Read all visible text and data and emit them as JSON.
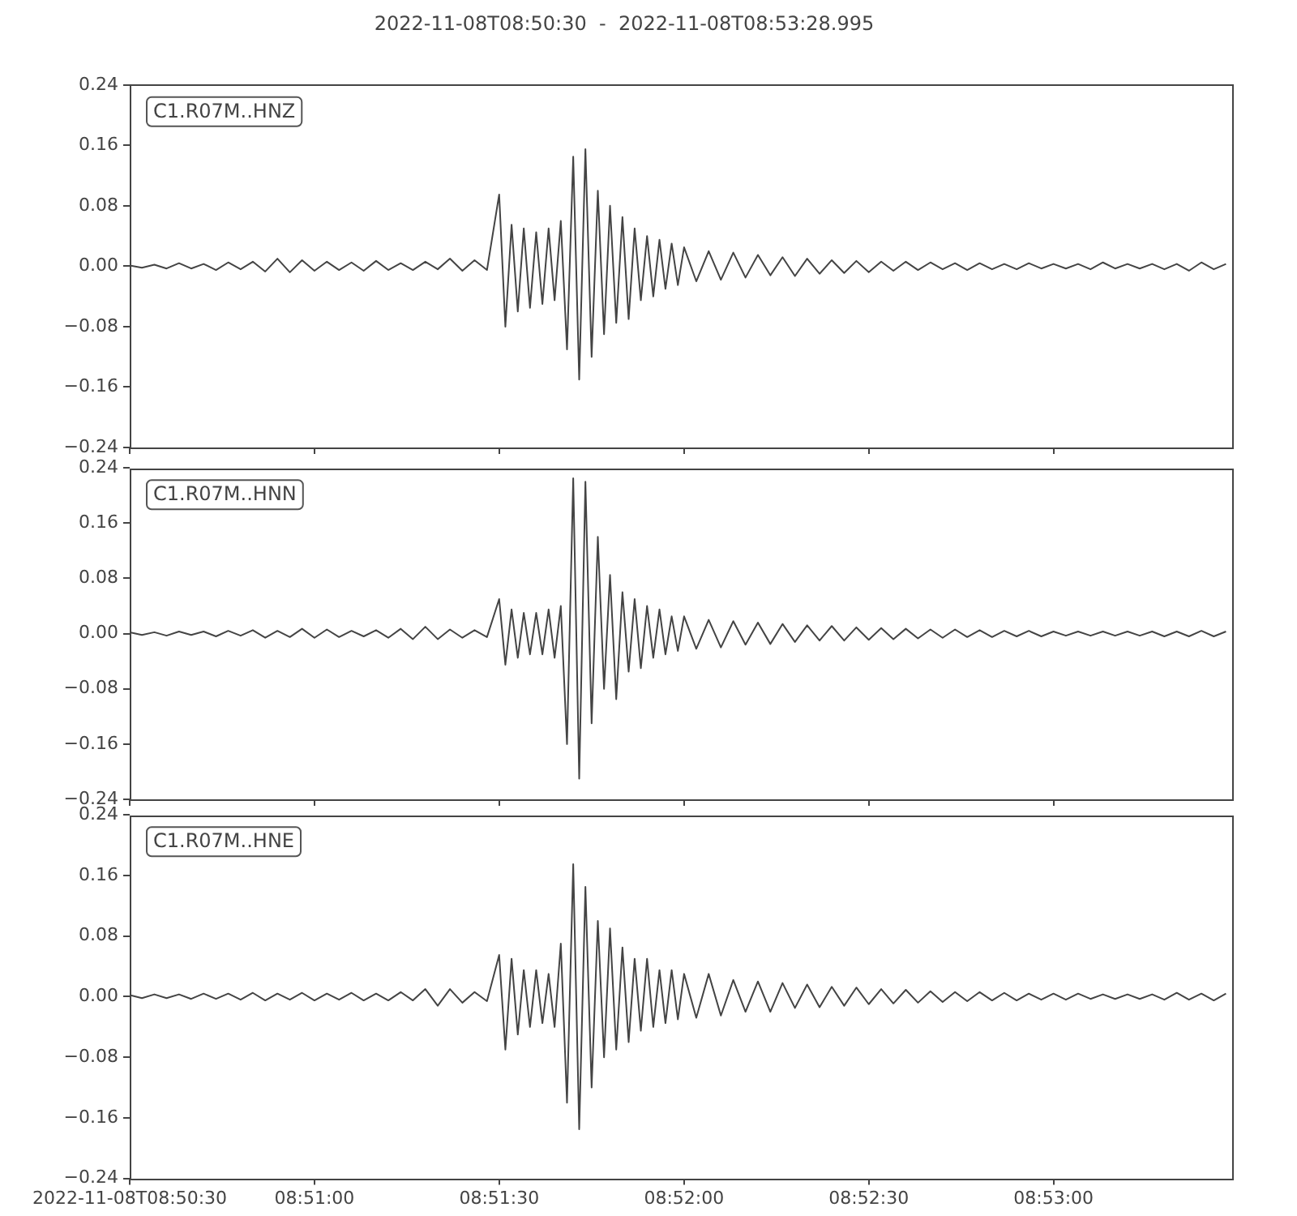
{
  "chart_data": [
    {
      "type": "line",
      "title": "2022-11-08T08:50:30  -  2022-11-08T08:53:28.995",
      "annotations": [
        "C1.R07M..HNZ"
      ],
      "color": "#444444",
      "tick_labels": "y",
      "xlim": [
        8.841667,
        8.891388
      ],
      "xticks": [
        {
          "value": 8.841667,
          "label": null
        },
        {
          "value": 8.85,
          "label": null
        },
        {
          "value": 8.858333,
          "label": null
        },
        {
          "value": 8.866667,
          "label": null
        },
        {
          "value": 8.875,
          "label": null
        },
        {
          "value": 8.883333,
          "label": null
        }
      ],
      "ylim": [
        -0.24,
        0.24
      ],
      "yticks": [
        {
          "value": -0.24,
          "label": "−0.24"
        },
        {
          "value": -0.16,
          "label": "−0.16"
        },
        {
          "value": -0.08,
          "label": "−0.08"
        },
        {
          "value": 0,
          "label": "0.00"
        },
        {
          "value": 0.08,
          "label": "0.08"
        },
        {
          "value": 0.16,
          "label": "0.16"
        },
        {
          "value": 0.24,
          "label": "0.24"
        }
      ],
      "x": [
        8.84167,
        8.84222,
        8.84278,
        8.84333,
        8.84389,
        8.84444,
        8.845,
        8.84556,
        8.84611,
        8.84667,
        8.84722,
        8.84778,
        8.84833,
        8.84889,
        8.84944,
        8.85,
        8.85056,
        8.85111,
        8.85167,
        8.85222,
        8.85278,
        8.85333,
        8.85389,
        8.85444,
        8.855,
        8.85556,
        8.85611,
        8.85667,
        8.85722,
        8.85778,
        8.85833,
        8.85861,
        8.85889,
        8.85917,
        8.85944,
        8.85972,
        8.86,
        8.86028,
        8.86056,
        8.86083,
        8.86111,
        8.86139,
        8.86167,
        8.86194,
        8.86222,
        8.8625,
        8.86278,
        8.86306,
        8.86333,
        8.86361,
        8.86389,
        8.86417,
        8.86444,
        8.86472,
        8.865,
        8.86528,
        8.86556,
        8.86583,
        8.86611,
        8.86639,
        8.86667,
        8.86722,
        8.86778,
        8.86833,
        8.86889,
        8.86944,
        8.87,
        8.87056,
        8.87111,
        8.87167,
        8.87222,
        8.87278,
        8.87333,
        8.87389,
        8.87444,
        8.875,
        8.87556,
        8.87611,
        8.87667,
        8.87722,
        8.87778,
        8.87833,
        8.87889,
        8.87944,
        8.88,
        8.88056,
        8.88111,
        8.88167,
        8.88222,
        8.88278,
        8.88333,
        8.88389,
        8.88444,
        8.885,
        8.88556,
        8.88611,
        8.88667,
        8.88722,
        8.88778,
        8.88833,
        8.88889,
        8.88944,
        8.89,
        8.89056,
        8.89111
      ],
      "values": [
        0.001,
        -0.002,
        0.002,
        -0.003,
        0.004,
        -0.003,
        0.003,
        -0.005,
        0.005,
        -0.004,
        0.006,
        -0.007,
        0.01,
        -0.008,
        0.008,
        -0.006,
        0.006,
        -0.005,
        0.005,
        -0.006,
        0.007,
        -0.005,
        0.004,
        -0.005,
        0.006,
        -0.004,
        0.01,
        -0.006,
        0.008,
        -0.005,
        0.095,
        -0.08,
        0.055,
        -0.06,
        0.05,
        -0.055,
        0.045,
        -0.05,
        0.05,
        -0.045,
        0.06,
        -0.11,
        0.145,
        -0.15,
        0.155,
        -0.12,
        0.1,
        -0.09,
        0.08,
        -0.075,
        0.065,
        -0.07,
        0.05,
        -0.045,
        0.04,
        -0.04,
        0.035,
        -0.03,
        0.03,
        -0.025,
        0.025,
        -0.02,
        0.02,
        -0.018,
        0.018,
        -0.015,
        0.015,
        -0.012,
        0.012,
        -0.013,
        0.01,
        -0.01,
        0.008,
        -0.009,
        0.007,
        -0.008,
        0.006,
        -0.006,
        0.006,
        -0.005,
        0.005,
        -0.004,
        0.004,
        -0.005,
        0.004,
        -0.004,
        0.003,
        -0.004,
        0.004,
        -0.003,
        0.003,
        -0.003,
        0.003,
        -0.004,
        0.005,
        -0.003,
        0.003,
        -0.003,
        0.003,
        -0.004,
        0.003,
        -0.006,
        0.005,
        -0.004,
        0.003
      ]
    },
    {
      "type": "line",
      "annotations": [
        "C1.R07M..HNN"
      ],
      "color": "#444444",
      "tick_labels": "y",
      "xlim": [
        8.841667,
        8.891388
      ],
      "xticks": [
        {
          "value": 8.841667,
          "label": null
        },
        {
          "value": 8.85,
          "label": null
        },
        {
          "value": 8.858333,
          "label": null
        },
        {
          "value": 8.866667,
          "label": null
        },
        {
          "value": 8.875,
          "label": null
        },
        {
          "value": 8.883333,
          "label": null
        }
      ],
      "ylim": [
        -0.24,
        0.24
      ],
      "yticks": [
        {
          "value": -0.24,
          "label": "−0.24"
        },
        {
          "value": -0.16,
          "label": "−0.16"
        },
        {
          "value": -0.08,
          "label": "−0.08"
        },
        {
          "value": 0,
          "label": "0.00"
        },
        {
          "value": 0.08,
          "label": "0.08"
        },
        {
          "value": 0.16,
          "label": "0.16"
        },
        {
          "value": 0.24,
          "label": "0.24"
        }
      ],
      "x": [
        8.84167,
        8.84222,
        8.84278,
        8.84333,
        8.84389,
        8.84444,
        8.845,
        8.84556,
        8.84611,
        8.84667,
        8.84722,
        8.84778,
        8.84833,
        8.84889,
        8.84944,
        8.85,
        8.85056,
        8.85111,
        8.85167,
        8.85222,
        8.85278,
        8.85333,
        8.85389,
        8.85444,
        8.855,
        8.85556,
        8.85611,
        8.85667,
        8.85722,
        8.85778,
        8.85833,
        8.85861,
        8.85889,
        8.85917,
        8.85944,
        8.85972,
        8.86,
        8.86028,
        8.86056,
        8.86083,
        8.86111,
        8.86139,
        8.86167,
        8.86194,
        8.86222,
        8.8625,
        8.86278,
        8.86306,
        8.86333,
        8.86361,
        8.86389,
        8.86417,
        8.86444,
        8.86472,
        8.865,
        8.86528,
        8.86556,
        8.86583,
        8.86611,
        8.86639,
        8.86667,
        8.86722,
        8.86778,
        8.86833,
        8.86889,
        8.86944,
        8.87,
        8.87056,
        8.87111,
        8.87167,
        8.87222,
        8.87278,
        8.87333,
        8.87389,
        8.87444,
        8.875,
        8.87556,
        8.87611,
        8.87667,
        8.87722,
        8.87778,
        8.87833,
        8.87889,
        8.87944,
        8.88,
        8.88056,
        8.88111,
        8.88167,
        8.88222,
        8.88278,
        8.88333,
        8.88389,
        8.88444,
        8.885,
        8.88556,
        8.88611,
        8.88667,
        8.88722,
        8.88778,
        8.88833,
        8.88889,
        8.88944,
        8.89,
        8.89056,
        8.89111
      ],
      "values": [
        0.002,
        -0.002,
        0.002,
        -0.003,
        0.003,
        -0.002,
        0.003,
        -0.004,
        0.004,
        -0.003,
        0.005,
        -0.006,
        0.004,
        -0.005,
        0.007,
        -0.006,
        0.006,
        -0.005,
        0.004,
        -0.004,
        0.005,
        -0.006,
        0.007,
        -0.008,
        0.01,
        -0.008,
        0.006,
        -0.006,
        0.005,
        -0.005,
        0.05,
        -0.045,
        0.035,
        -0.035,
        0.03,
        -0.03,
        0.03,
        -0.03,
        0.035,
        -0.035,
        0.04,
        -0.16,
        0.225,
        -0.21,
        0.22,
        -0.13,
        0.14,
        -0.08,
        0.085,
        -0.095,
        0.06,
        -0.055,
        0.05,
        -0.05,
        0.04,
        -0.035,
        0.035,
        -0.03,
        0.025,
        -0.025,
        0.025,
        -0.022,
        0.02,
        -0.02,
        0.018,
        -0.016,
        0.016,
        -0.015,
        0.014,
        -0.012,
        0.012,
        -0.01,
        0.011,
        -0.01,
        0.009,
        -0.009,
        0.008,
        -0.008,
        0.007,
        -0.007,
        0.006,
        -0.006,
        0.006,
        -0.005,
        0.005,
        -0.005,
        0.004,
        -0.004,
        0.004,
        -0.004,
        0.003,
        -0.003,
        0.003,
        -0.003,
        0.003,
        -0.003,
        0.003,
        -0.003,
        0.003,
        -0.004,
        0.003,
        -0.004,
        0.004,
        -0.004,
        0.003
      ]
    },
    {
      "type": "line",
      "annotations": [
        "C1.R07M..HNE"
      ],
      "color": "#444444",
      "xlim": [
        8.841667,
        8.891388
      ],
      "xticks": [
        {
          "value": 8.841667,
          "label": "2022-11-08T08:50:30"
        },
        {
          "value": 8.85,
          "label": "08:51:00"
        },
        {
          "value": 8.858333,
          "label": "08:51:30"
        },
        {
          "value": 8.866667,
          "label": "08:52:00"
        },
        {
          "value": 8.875,
          "label": "08:52:30"
        },
        {
          "value": 8.883333,
          "label": "08:53:00"
        }
      ],
      "ylim": [
        -0.24,
        0.24
      ],
      "yticks": [
        {
          "value": -0.24,
          "label": "−0.24"
        },
        {
          "value": -0.16,
          "label": "−0.16"
        },
        {
          "value": -0.08,
          "label": "−0.08"
        },
        {
          "value": 0,
          "label": "0.00"
        },
        {
          "value": 0.08,
          "label": "0.08"
        },
        {
          "value": 0.16,
          "label": "0.16"
        },
        {
          "value": 0.24,
          "label": "0.24"
        }
      ],
      "x": [
        8.84167,
        8.84222,
        8.84278,
        8.84333,
        8.84389,
        8.84444,
        8.845,
        8.84556,
        8.84611,
        8.84667,
        8.84722,
        8.84778,
        8.84833,
        8.84889,
        8.84944,
        8.85,
        8.85056,
        8.85111,
        8.85167,
        8.85222,
        8.85278,
        8.85333,
        8.85389,
        8.85444,
        8.855,
        8.85556,
        8.85611,
        8.85667,
        8.85722,
        8.85778,
        8.85833,
        8.85861,
        8.85889,
        8.85917,
        8.85944,
        8.85972,
        8.86,
        8.86028,
        8.86056,
        8.86083,
        8.86111,
        8.86139,
        8.86167,
        8.86194,
        8.86222,
        8.8625,
        8.86278,
        8.86306,
        8.86333,
        8.86361,
        8.86389,
        8.86417,
        8.86444,
        8.86472,
        8.865,
        8.86528,
        8.86556,
        8.86583,
        8.86611,
        8.86639,
        8.86667,
        8.86722,
        8.86778,
        8.86833,
        8.86889,
        8.86944,
        8.87,
        8.87056,
        8.87111,
        8.87167,
        8.87222,
        8.87278,
        8.87333,
        8.87389,
        8.87444,
        8.875,
        8.87556,
        8.87611,
        8.87667,
        8.87722,
        8.87778,
        8.87833,
        8.87889,
        8.87944,
        8.88,
        8.88056,
        8.88111,
        8.88167,
        8.88222,
        8.88278,
        8.88333,
        8.88389,
        8.88444,
        8.885,
        8.88556,
        8.88611,
        8.88667,
        8.88722,
        8.88778,
        8.88833,
        8.88889,
        8.88944,
        8.89,
        8.89056,
        8.89111
      ],
      "values": [
        0.002,
        -0.002,
        0.003,
        -0.002,
        0.003,
        -0.003,
        0.004,
        -0.003,
        0.004,
        -0.004,
        0.005,
        -0.005,
        0.004,
        -0.004,
        0.005,
        -0.005,
        0.004,
        -0.004,
        0.005,
        -0.005,
        0.004,
        -0.005,
        0.006,
        -0.005,
        0.01,
        -0.012,
        0.01,
        -0.008,
        0.006,
        -0.006,
        0.055,
        -0.07,
        0.05,
        -0.05,
        0.035,
        -0.04,
        0.035,
        -0.035,
        0.03,
        -0.04,
        0.07,
        -0.14,
        0.175,
        -0.175,
        0.145,
        -0.12,
        0.1,
        -0.08,
        0.09,
        -0.07,
        0.065,
        -0.06,
        0.05,
        -0.045,
        0.05,
        -0.04,
        0.035,
        -0.035,
        0.035,
        -0.03,
        0.03,
        -0.028,
        0.03,
        -0.025,
        0.022,
        -0.02,
        0.02,
        -0.02,
        0.018,
        -0.015,
        0.016,
        -0.014,
        0.013,
        -0.012,
        0.012,
        -0.01,
        0.01,
        -0.009,
        0.009,
        -0.008,
        0.007,
        -0.007,
        0.006,
        -0.006,
        0.006,
        -0.005,
        0.005,
        -0.005,
        0.004,
        -0.004,
        0.004,
        -0.004,
        0.004,
        -0.003,
        0.003,
        -0.003,
        0.003,
        -0.003,
        0.003,
        -0.004,
        0.005,
        -0.004,
        0.004,
        -0.005,
        0.004
      ]
    }
  ]
}
